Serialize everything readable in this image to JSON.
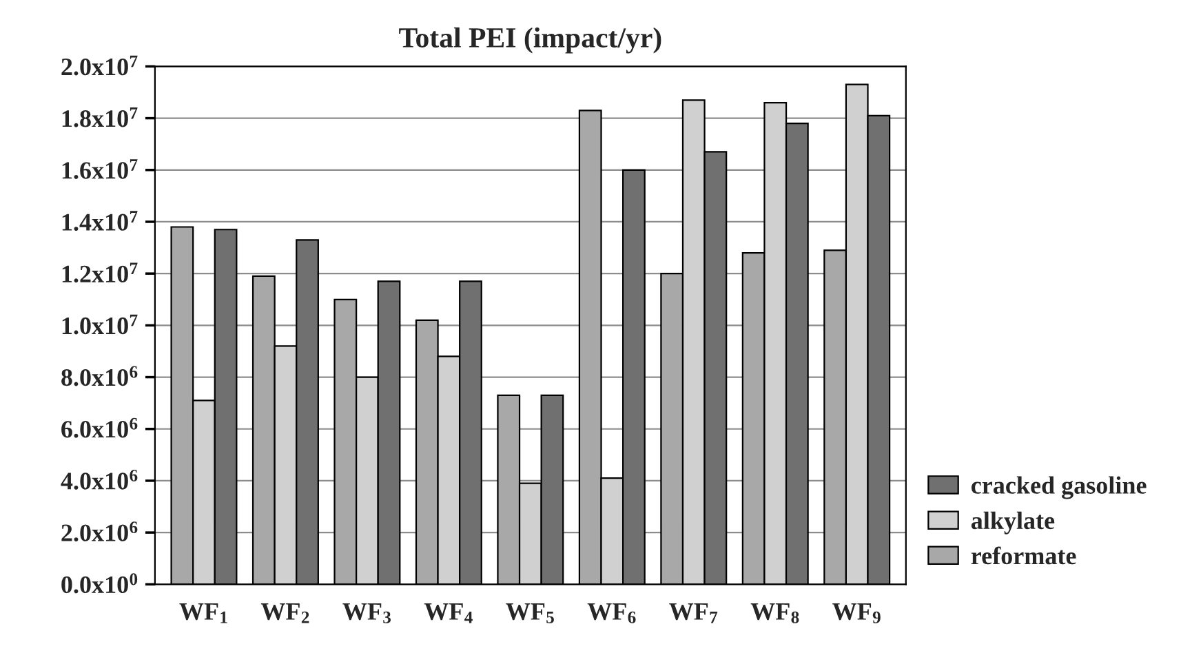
{
  "chart_data": {
    "type": "bar",
    "title": "Total PEI (impact/yr)",
    "categories": [
      "WF$_{1}$",
      "WF$_{2}$",
      "WF$_{3}$",
      "WF$_{4}$",
      "WF$_{5}$",
      "WF$_{6}$",
      "WF$_{7}$",
      "WF$_{8}$",
      "WF$_{9}$"
    ],
    "series": [
      {
        "name": "reformate",
        "color": "#a8a8a8",
        "values": [
          13800000,
          11900000,
          11000000,
          10200000,
          7300000,
          18300000,
          12000000,
          12800000,
          12900000
        ]
      },
      {
        "name": "alkylate",
        "color": "#d0d0d0",
        "values": [
          7100000,
          9200000,
          8000000,
          8800000,
          3900000,
          4100000,
          18700000,
          18600000,
          19300000
        ]
      },
      {
        "name": "cracked gasoline",
        "color": "#707070",
        "values": [
          13700000,
          13300000,
          11700000,
          11700000,
          7300000,
          16000000,
          16700000,
          17800000,
          18100000
        ]
      }
    ],
    "ylim": [
      0,
      20000000
    ],
    "yticks": [
      {
        "value": 0,
        "label": "0.0x10$^{0}$"
      },
      {
        "value": 2000000,
        "label": "2.0x10$^{6}$"
      },
      {
        "value": 4000000,
        "label": "4.0x10$^{6}$"
      },
      {
        "value": 6000000,
        "label": "6.0x10$^{6}$"
      },
      {
        "value": 8000000,
        "label": "8.0x10$^{6}$"
      },
      {
        "value": 10000000,
        "label": "1.0x10$^{7}$"
      },
      {
        "value": 12000000,
        "label": "1.2x10$^{7}$"
      },
      {
        "value": 14000000,
        "label": "1.4x10$^{7}$"
      },
      {
        "value": 16000000,
        "label": "1.6x10$^{7}$"
      },
      {
        "value": 18000000,
        "label": "1.8x10$^{7}$"
      },
      {
        "value": 20000000,
        "label": "2.0x10$^{7}$"
      }
    ],
    "grid": "y",
    "legend": "bottom right"
  }
}
